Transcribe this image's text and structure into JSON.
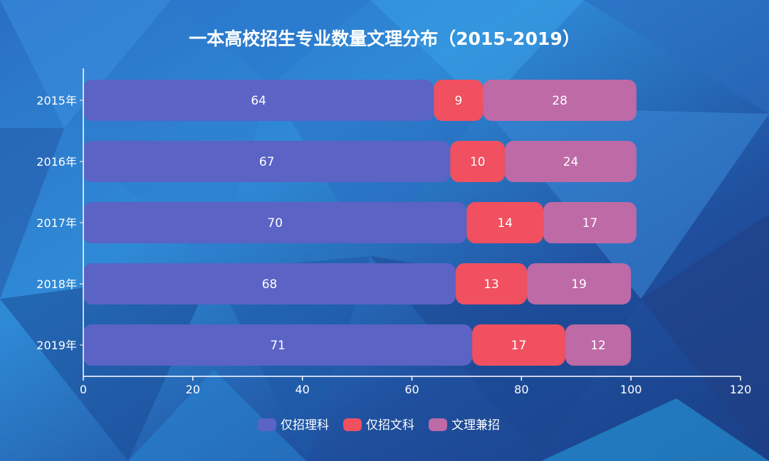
{
  "chart_data": {
    "type": "bar",
    "orientation": "horizontal",
    "stacked": true,
    "title": "一本高校招生专业数量文理分布（2015-2019）",
    "categories": [
      "2015年",
      "2016年",
      "2017年",
      "2018年",
      "2019年"
    ],
    "series": [
      {
        "name": "仅招理科",
        "values": [
          64,
          67,
          70,
          68,
          71
        ],
        "color": "#5b63c4"
      },
      {
        "name": "仅招文科",
        "values": [
          9,
          10,
          14,
          13,
          17
        ],
        "color": "#f0505f"
      },
      {
        "name": "文理兼招",
        "values": [
          28,
          24,
          17,
          19,
          12
        ],
        "color": "#bd6aa6"
      }
    ],
    "xlim": [
      0,
      120
    ],
    "xticks": [
      0,
      20,
      40,
      60,
      80,
      100,
      120
    ],
    "grid": false,
    "legend_position": "bottom-center",
    "data_labels": true,
    "colors": {
      "background_dark": "#1c3f86",
      "background_light": "#2e8fd8",
      "text": "#ffffff"
    }
  }
}
